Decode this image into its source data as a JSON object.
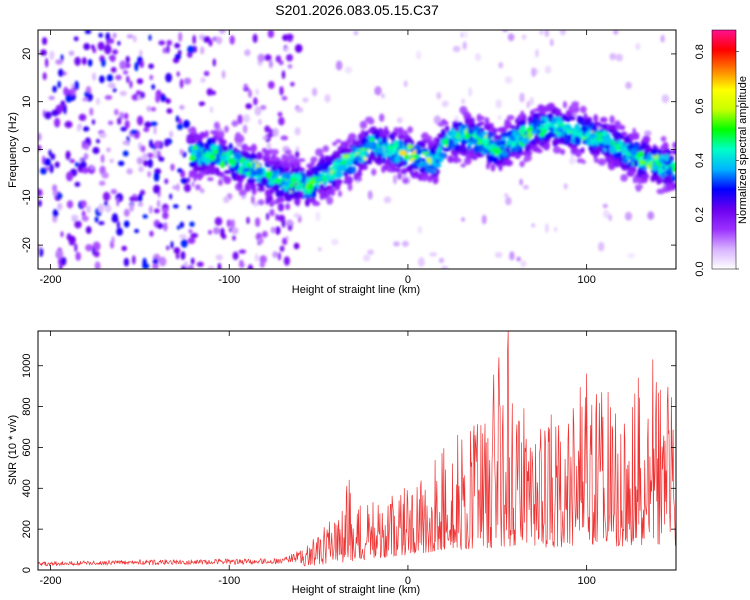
{
  "figure": {
    "title": "S201.2026.083.05.15.C37"
  },
  "chart_data": [
    {
      "type": "heatmap",
      "title": "S201.2026.083.05.15.C37",
      "xlabel": "Height of straight line (km)",
      "ylabel": "Frequency (Hz)",
      "xlim": [
        -207,
        150
      ],
      "ylim": [
        -25,
        25
      ],
      "xticks": [
        -200,
        -100,
        0,
        100
      ],
      "yticks": [
        -20,
        -10,
        0,
        10,
        20
      ],
      "xtick_labels": [
        "-200",
        "-100",
        "0",
        "100"
      ],
      "ytick_labels": [
        "-20",
        "-10",
        "0",
        "10",
        "20"
      ],
      "colorbar": {
        "label": "Normalized spectral amplitude",
        "range": [
          0.0,
          0.88
        ],
        "ticks": [
          0.0,
          0.2,
          0.4,
          0.6,
          0.8
        ],
        "tick_labels": [
          "0.0",
          "0.2",
          "0.4",
          "0.6",
          "0.8"
        ],
        "colors": [
          "#ffffff",
          "#d7b2ff",
          "#9b30ff",
          "#6a00f0",
          "#0000ff",
          "#00b4ff",
          "#00ffc8",
          "#00ff00",
          "#c8ff00",
          "#ffff00",
          "#ff7f00",
          "#ff0000",
          "#ff1090"
        ]
      },
      "ridge_x": [
        -120,
        -110,
        -100,
        -90,
        -80,
        -70,
        -60,
        -55,
        -50,
        -40,
        -30,
        -20,
        -10,
        0,
        10,
        15,
        20,
        30,
        40,
        50,
        60,
        70,
        80,
        90,
        100,
        110,
        120,
        130,
        140,
        150
      ],
      "ridge_freq": [
        -1,
        -1,
        -2,
        -4,
        -5,
        -7,
        -7,
        -8,
        -6,
        -4,
        -2,
        1,
        0,
        -1,
        -2,
        -3,
        1,
        3,
        2,
        0,
        2,
        4,
        5,
        4,
        3,
        2,
        0,
        -2,
        -3,
        -4
      ]
    },
    {
      "type": "line",
      "xlabel": "Height of straight line (km)",
      "ylabel": "SNR (10 * v/v)",
      "xlim": [
        -207,
        150
      ],
      "ylim": [
        0,
        1170
      ],
      "xticks": [
        -200,
        -100,
        0,
        100
      ],
      "yticks": [
        0,
        200,
        400,
        600,
        800,
        1000
      ],
      "xtick_labels": [
        "-200",
        "-100",
        "0",
        "100"
      ],
      "ytick_labels": [
        "0",
        "200",
        "400",
        "600",
        "800",
        "1000"
      ],
      "color": "#ee3333",
      "envelope": {
        "x": [
          -207,
          -150,
          -100,
          -70,
          -60,
          -50,
          -40,
          -35,
          -30,
          -20,
          -10,
          0,
          10,
          20,
          30,
          40,
          50,
          55,
          60,
          70,
          80,
          90,
          100,
          110,
          120,
          130,
          140,
          150
        ],
        "peak": [
          40,
          50,
          55,
          60,
          100,
          180,
          280,
          440,
          330,
          330,
          370,
          430,
          500,
          600,
          650,
          780,
          1060,
          1170,
          760,
          640,
          760,
          820,
          960,
          870,
          840,
          940,
          1030,
          860
        ],
        "base": [
          15,
          20,
          22,
          25,
          35,
          50,
          70,
          80,
          90,
          110,
          130,
          150,
          170,
          190,
          200,
          210,
          220,
          230,
          240,
          230,
          220,
          230,
          240,
          240,
          230,
          240,
          250,
          240
        ]
      },
      "peaks": [
        {
          "x": -33,
          "y": 440
        },
        {
          "x": 20,
          "y": 595
        },
        {
          "x": 28,
          "y": 660
        },
        {
          "x": 48,
          "y": 955
        },
        {
          "x": 51,
          "y": 1040
        },
        {
          "x": 56,
          "y": 1170
        },
        {
          "x": 65,
          "y": 790
        },
        {
          "x": 80,
          "y": 760
        },
        {
          "x": 100,
          "y": 960
        },
        {
          "x": 112,
          "y": 870
        },
        {
          "x": 129,
          "y": 940
        },
        {
          "x": 137,
          "y": 1030
        },
        {
          "x": 145,
          "y": 820
        }
      ]
    }
  ]
}
